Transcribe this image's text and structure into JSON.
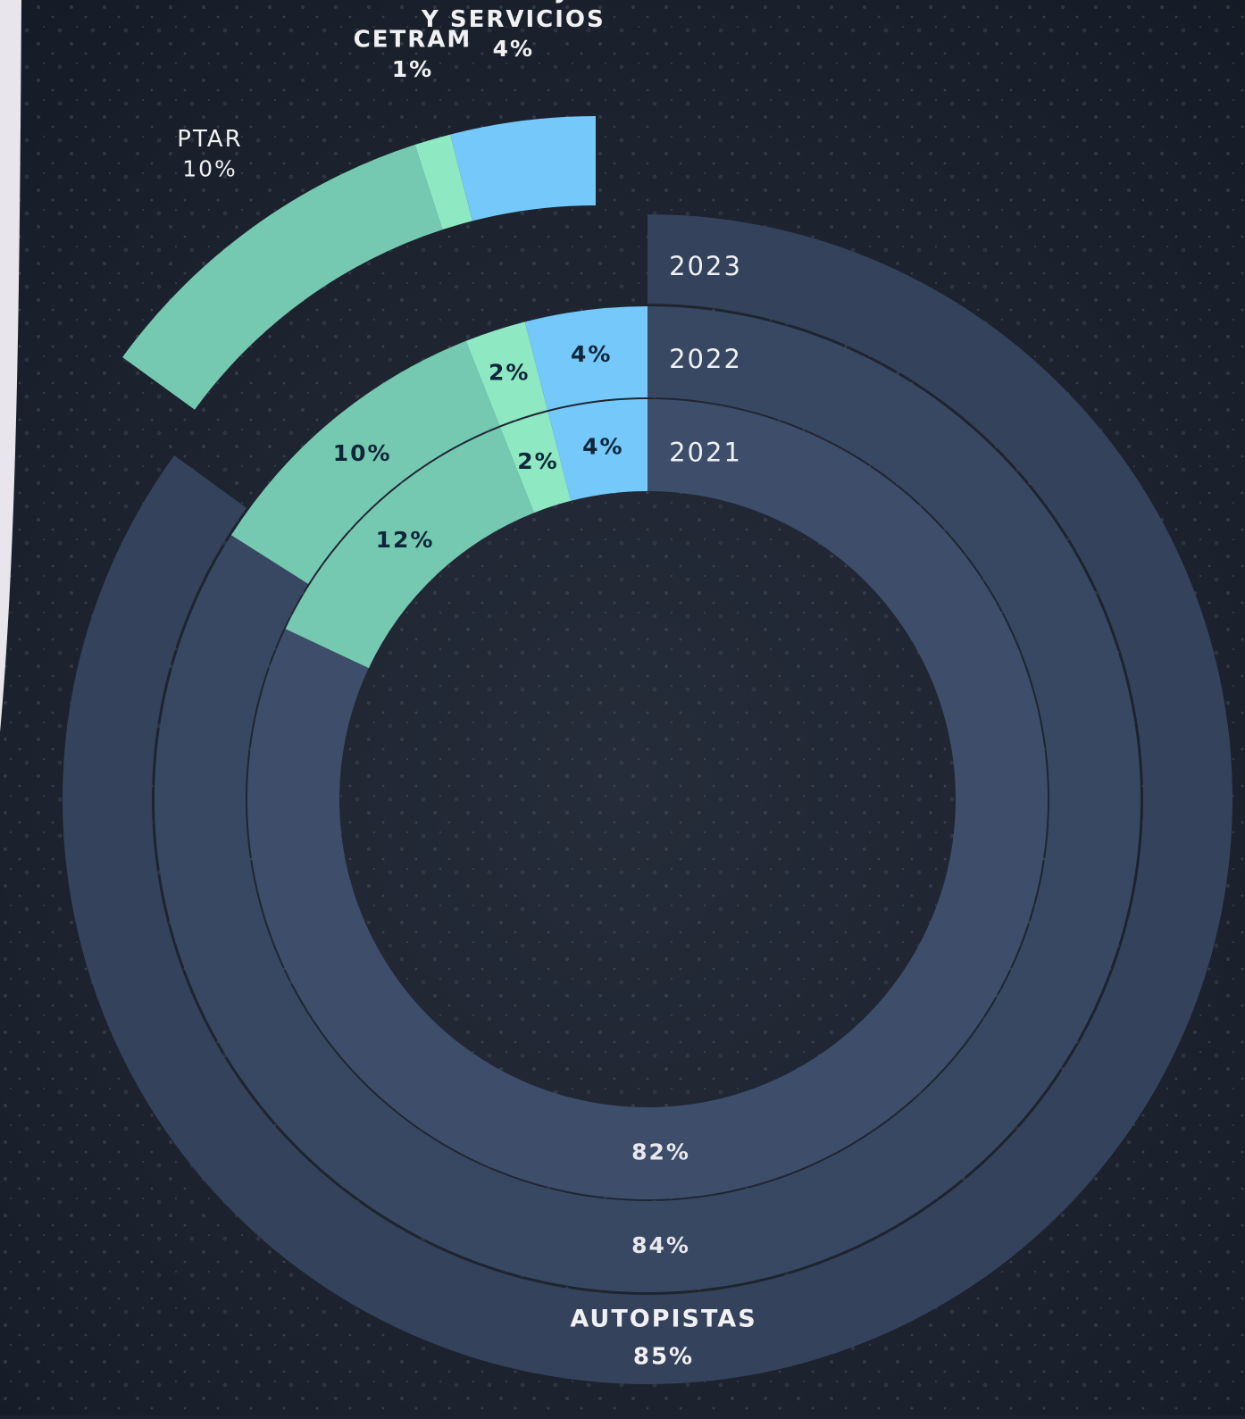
{
  "chart_data": {
    "type": "donut",
    "categories": [
      "AUTOPISTAS",
      "PTAR",
      "CETRAM",
      "TELEPEAJE Y SERVICIOS"
    ],
    "series": [
      {
        "name": "2021",
        "values": [
          82,
          12,
          2,
          4
        ],
        "value_labels": [
          "82%",
          "12%",
          "2%",
          "4%"
        ],
        "colors": [
          "#3d4d6a",
          "#76c9b1",
          "#8ee9c3",
          "#74c8fa"
        ]
      },
      {
        "name": "2022",
        "values": [
          84,
          10,
          2,
          4
        ],
        "value_labels": [
          "84%",
          "10%",
          "2%",
          "4%"
        ],
        "colors": [
          "#394862",
          "#76c9b1",
          "#8ee9c3",
          "#74c8fa"
        ]
      },
      {
        "name": "2023",
        "values": [
          85,
          10,
          1,
          4
        ],
        "value_labels": [
          "85%",
          "10%",
          "1%",
          "4%"
        ],
        "colors": [
          "#34425b",
          "#76c9b1",
          "#8ee9c3",
          "#74c8fa"
        ]
      }
    ]
  }
}
